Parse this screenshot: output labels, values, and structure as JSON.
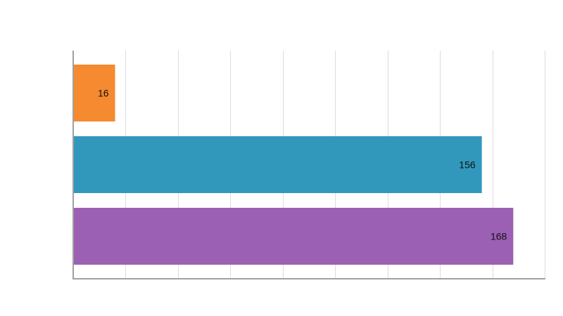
{
  "chart_data": {
    "type": "bar",
    "orientation": "horizontal",
    "categories": [
      "",
      "",
      ""
    ],
    "values": [
      16,
      156,
      168
    ],
    "colors": [
      "#f58a30",
      "#3198bc",
      "#9b5fb3"
    ],
    "xlim": [
      0,
      180
    ],
    "x_grid_step": 20,
    "grid": true,
    "legend": "none",
    "title": "",
    "xlabel": "",
    "ylabel": ""
  }
}
